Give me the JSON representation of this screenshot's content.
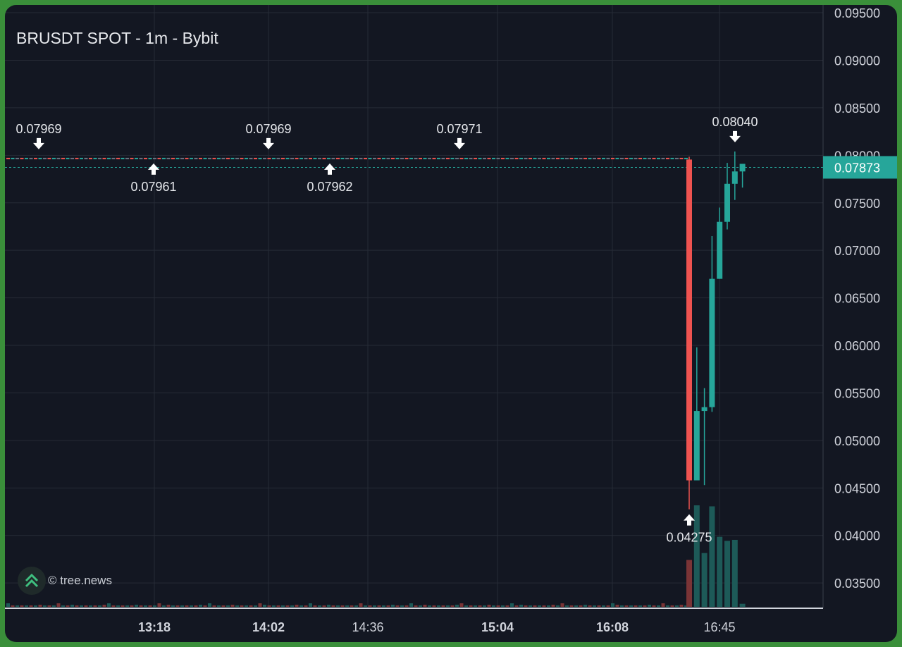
{
  "chart_data": {
    "type": "candlestick",
    "title": "BRUSDT SPOT - 1m - Bybit",
    "watermark": "© tree.news",
    "price_axis": {
      "ticks": [
        "0.09500",
        "0.09000",
        "0.08500",
        "0.08000",
        "0.07500",
        "0.07000",
        "0.06500",
        "0.06000",
        "0.05500",
        "0.05000",
        "0.04500",
        "0.04000",
        "0.03500"
      ],
      "range": [
        0.03353,
        0.0953
      ]
    },
    "time_axis": {
      "ticks": [
        {
          "label": "13:18",
          "bold": true
        },
        {
          "label": "14:02",
          "bold": true
        },
        {
          "label": "14:36",
          "bold": false
        },
        {
          "label": "15:04",
          "bold": true
        },
        {
          "label": "16:08",
          "bold": true
        },
        {
          "label": "16:45",
          "bold": false
        }
      ]
    },
    "last_price": {
      "value": 0.07873,
      "label": "0.07873",
      "color": "#26a69a"
    },
    "candles": [
      {
        "o": 0.07955,
        "h": 0.07985,
        "l": 0.04275,
        "c": 0.0458
      },
      {
        "o": 0.0458,
        "h": 0.0598,
        "l": 0.0458,
        "c": 0.0531
      },
      {
        "o": 0.0531,
        "h": 0.0555,
        "l": 0.0453,
        "c": 0.0535
      },
      {
        "o": 0.0535,
        "h": 0.0715,
        "l": 0.053,
        "c": 0.067
      },
      {
        "o": 0.067,
        "h": 0.0745,
        "l": 0.067,
        "c": 0.073
      },
      {
        "o": 0.073,
        "h": 0.0792,
        "l": 0.0722,
        "c": 0.077
      },
      {
        "o": 0.077,
        "h": 0.0804,
        "l": 0.0753,
        "c": 0.0783
      },
      {
        "o": 0.0783,
        "h": 0.0791,
        "l": 0.0766,
        "c": 0.0791
      }
    ],
    "annotations": [
      {
        "label": "0.07969",
        "type": "high"
      },
      {
        "label": "0.07961",
        "type": "low"
      },
      {
        "label": "0.07969",
        "type": "high"
      },
      {
        "label": "0.07962",
        "type": "low"
      },
      {
        "label": "0.07971",
        "type": "high"
      },
      {
        "label": "0.08040",
        "type": "high"
      },
      {
        "label": "0.04275",
        "type": "low"
      }
    ],
    "colors": {
      "background": "#131722",
      "grid": "#262b36",
      "up": "#26a69a",
      "down": "#ef5350",
      "up_volume": "#1d5a58",
      "down_volume": "#7a3436",
      "text": "#e6e8ec"
    }
  }
}
